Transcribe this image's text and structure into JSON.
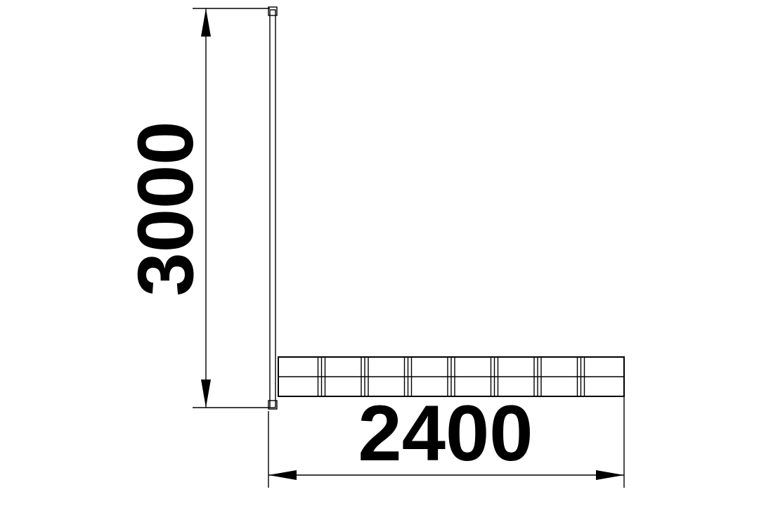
{
  "dimensions": {
    "height_label": "3000",
    "width_label": "2400"
  },
  "colors": {
    "stroke": "#000000",
    "background": "#ffffff"
  },
  "bench": {
    "module_count": 8
  }
}
